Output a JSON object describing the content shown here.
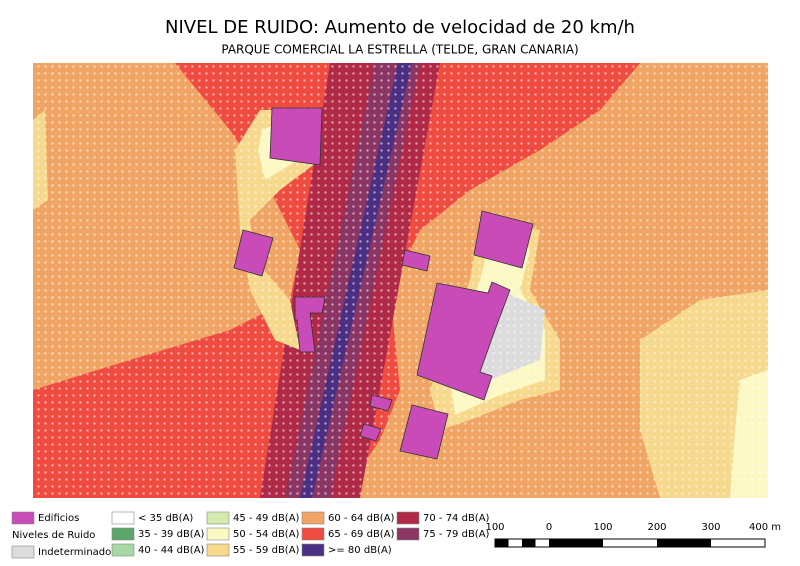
{
  "header": {
    "title": "NIVEL DE RUIDO: Aumento de velocidad de 20 km/h",
    "subtitle": "PARQUE COMERCIAL LA ESTRELLA (TELDE, GRAN CANARIA)"
  },
  "legend": {
    "buildings": {
      "label": "Edificios",
      "color": "#c84bb7"
    },
    "title": "Niveles de Ruido",
    "undetermined": {
      "label": "Indeterminado",
      "color": "#dcdcdc"
    },
    "levels": [
      {
        "label": "< 35 dB(A)",
        "color": "#ffffff"
      },
      {
        "label": "35 - 39 dB(A)",
        "color": "#5ba66a"
      },
      {
        "label": "40 - 44 dB(A)",
        "color": "#a6d9a6"
      },
      {
        "label": "45 - 49 dB(A)",
        "color": "#d4ebb0"
      },
      {
        "label": "50 - 54 dB(A)",
        "color": "#fbf8c4"
      },
      {
        "label": "55 - 59 dB(A)",
        "color": "#f6d98c"
      },
      {
        "label": "60 - 64 dB(A)",
        "color": "#f0a565"
      },
      {
        "label": "65 - 69 dB(A)",
        "color": "#f04b40"
      },
      {
        "label": ">= 80 dB(A)",
        "color": "#4a2f83"
      },
      {
        "label": "70 - 74 dB(A)",
        "color": "#b02a47"
      },
      {
        "label": "75 - 79 dB(A)",
        "color": "#8a3563"
      }
    ]
  },
  "scale_bar": {
    "labels": [
      "100",
      "0",
      "100",
      "200",
      "300",
      "400 m"
    ]
  }
}
